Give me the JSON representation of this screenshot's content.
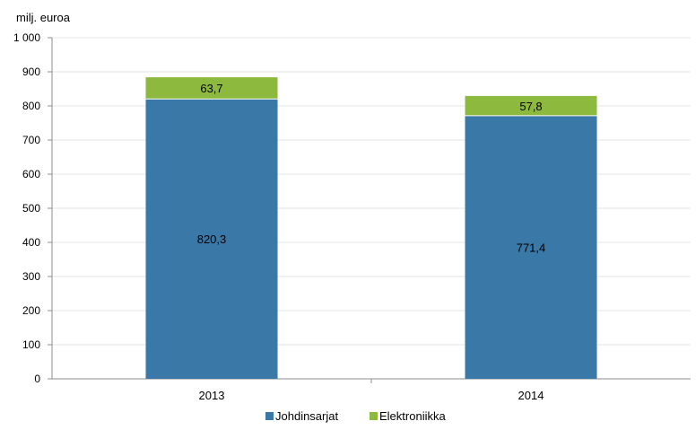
{
  "chart_data": {
    "type": "bar",
    "stacked": true,
    "unit_label": "milj. euroa",
    "categories": [
      "2013",
      "2014"
    ],
    "series": [
      {
        "name": "Johdinsarjat",
        "color": "#3a78a7",
        "values": [
          820.3,
          771.4
        ],
        "labels": [
          "820,3",
          "771,4"
        ]
      },
      {
        "name": "Elektroniikka",
        "color": "#8db93f",
        "values": [
          63.7,
          57.8
        ],
        "labels": [
          "63,7",
          "57,8"
        ]
      }
    ],
    "ylim": [
      0,
      1000
    ],
    "yticks": [
      {
        "value": 0,
        "label": "0"
      },
      {
        "value": 100,
        "label": "100"
      },
      {
        "value": 200,
        "label": "200"
      },
      {
        "value": 300,
        "label": "300"
      },
      {
        "value": 400,
        "label": "400"
      },
      {
        "value": 500,
        "label": "500"
      },
      {
        "value": 600,
        "label": "600"
      },
      {
        "value": 700,
        "label": "700"
      },
      {
        "value": 800,
        "label": "800"
      },
      {
        "value": 900,
        "label": "900"
      },
      {
        "value": 1000,
        "label": "1 000"
      }
    ],
    "grid": true,
    "legend_position": "bottom"
  }
}
